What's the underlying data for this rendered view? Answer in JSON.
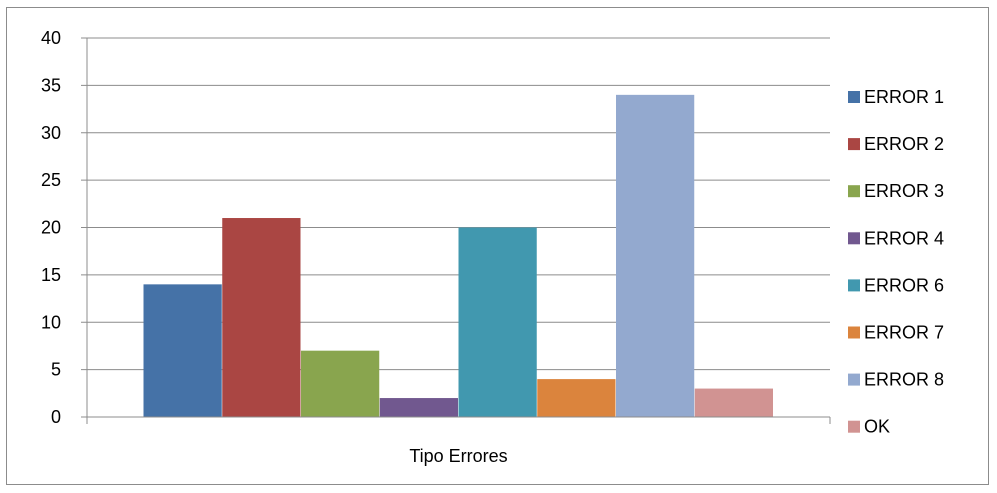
{
  "chart_data": {
    "type": "bar",
    "categories": [
      "Tipo Errores"
    ],
    "xlabel": "Tipo Errores",
    "ylabel": "",
    "title": "",
    "ylim": [
      0,
      40
    ],
    "yticks": [
      0,
      5,
      10,
      15,
      20,
      25,
      30,
      35,
      40
    ],
    "grid": true,
    "legend_position": "right",
    "series": [
      {
        "name": "ERROR 1",
        "values": [
          14
        ],
        "color": "#4572a7"
      },
      {
        "name": "ERROR 2",
        "values": [
          21
        ],
        "color": "#aa4643"
      },
      {
        "name": "ERROR 3",
        "values": [
          7
        ],
        "color": "#89a54e"
      },
      {
        "name": "ERROR 4",
        "values": [
          2
        ],
        "color": "#71588f"
      },
      {
        "name": "ERROR 6",
        "values": [
          20
        ],
        "color": "#4198af"
      },
      {
        "name": "ERROR 7",
        "values": [
          4
        ],
        "color": "#db843d"
      },
      {
        "name": "ERROR 8",
        "values": [
          34
        ],
        "color": "#93a9cf"
      },
      {
        "name": "OK",
        "values": [
          3
        ],
        "color": "#d19392"
      }
    ]
  }
}
